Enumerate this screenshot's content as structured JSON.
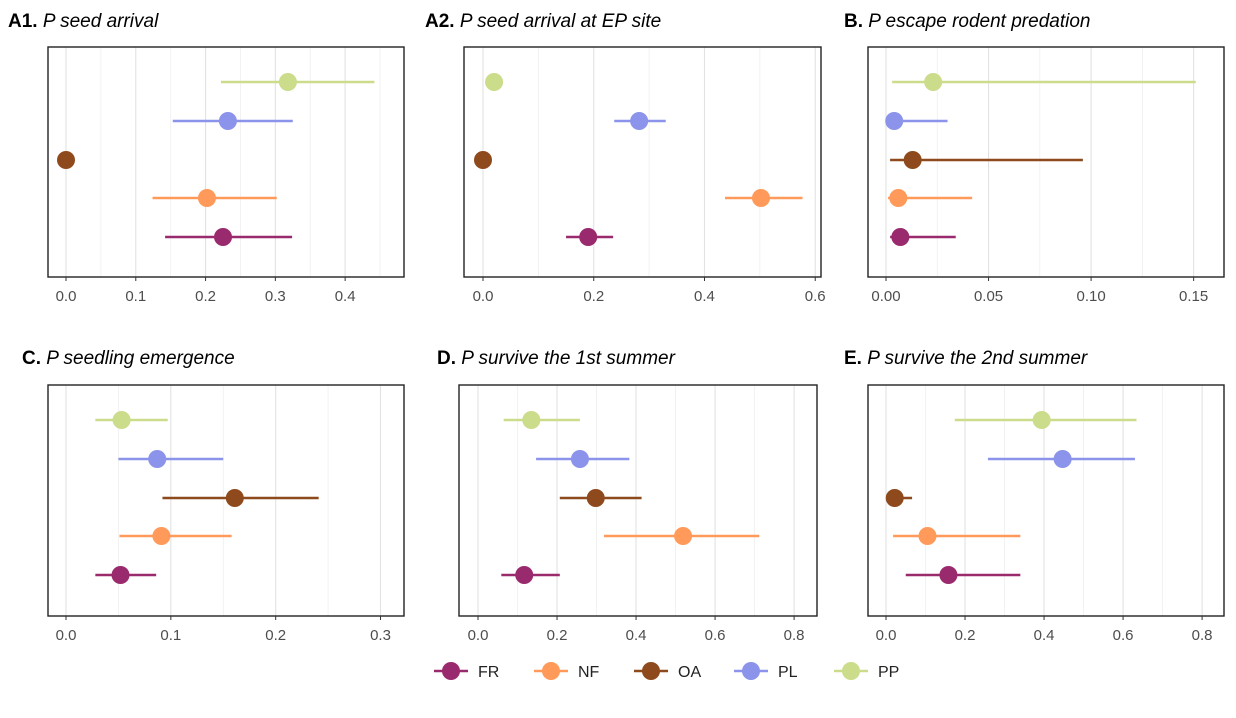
{
  "legend": {
    "items": [
      {
        "name": "FR",
        "color": "#9a2a6e"
      },
      {
        "name": "NF",
        "color": "#ff9a5a"
      },
      {
        "name": "OA",
        "color": "#8e4a1c"
      },
      {
        "name": "PL",
        "color": "#8b93ea"
      },
      {
        "name": "PP",
        "color": "#cbdc8b"
      }
    ],
    "placement": "bottom"
  },
  "chart_data": [
    {
      "type": "pointrange",
      "label": "A1.",
      "title": "P seed arrival",
      "xlim": [
        0,
        0.46
      ],
      "ticks": [
        0,
        0.1,
        0.2,
        0.3,
        0.4
      ],
      "tick_labels": [
        "0.0",
        "0.1",
        "0.2",
        "0.3",
        "0.4"
      ],
      "grid": true,
      "series": [
        {
          "group": "FR",
          "mid": 0.225,
          "lo": 0.142,
          "hi": 0.324
        },
        {
          "group": "NF",
          "mid": 0.202,
          "lo": 0.124,
          "hi": 0.302
        },
        {
          "group": "OA",
          "mid": 0.0,
          "lo": 0.0,
          "hi": 0.0
        },
        {
          "group": "PL",
          "mid": 0.232,
          "lo": 0.153,
          "hi": 0.325
        },
        {
          "group": "PP",
          "mid": 0.318,
          "lo": 0.222,
          "hi": 0.442
        }
      ]
    },
    {
      "type": "pointrange",
      "label": "A2.",
      "title": "P seed arrival at EP site",
      "xlim": [
        0,
        0.605
      ],
      "ticks": [
        0,
        0.2,
        0.4,
        0.6
      ],
      "tick_labels": [
        "0.0",
        "0.2",
        "0.4",
        "0.6"
      ],
      "grid": true,
      "series": [
        {
          "group": "FR",
          "mid": 0.19,
          "lo": 0.15,
          "hi": 0.235
        },
        {
          "group": "NF",
          "mid": 0.502,
          "lo": 0.437,
          "hi": 0.577
        },
        {
          "group": "OA",
          "mid": 0.0,
          "lo": 0.0,
          "hi": 0.0
        },
        {
          "group": "PL",
          "mid": 0.282,
          "lo": 0.237,
          "hi": 0.33
        },
        {
          "group": "PP",
          "mid": 0.02,
          "lo": 0.02,
          "hi": 0.02
        }
      ]
    },
    {
      "type": "pointrange",
      "label": "B.",
      "title": "P escape rodent predation",
      "xlim": [
        0,
        0.157
      ],
      "ticks": [
        0,
        0.05,
        0.1,
        0.15
      ],
      "tick_labels": [
        "0.00",
        "0.05",
        "0.10",
        "0.15"
      ],
      "grid": true,
      "series": [
        {
          "group": "FR",
          "mid": 0.007,
          "lo": 0.002,
          "hi": 0.034
        },
        {
          "group": "NF",
          "mid": 0.006,
          "lo": 0.001,
          "hi": 0.042
        },
        {
          "group": "OA",
          "mid": 0.013,
          "lo": 0.002,
          "hi": 0.096
        },
        {
          "group": "PL",
          "mid": 0.004,
          "lo": 0.0,
          "hi": 0.03
        },
        {
          "group": "PP",
          "mid": 0.023,
          "lo": 0.003,
          "hi": 0.151
        }
      ]
    },
    {
      "type": "pointrange",
      "label": "C.",
      "title": "P seedling emergence",
      "xlim": [
        0,
        0.31
      ],
      "ticks": [
        0,
        0.1,
        0.2,
        0.3
      ],
      "tick_labels": [
        "0.0",
        "0.1",
        "0.2",
        "0.3"
      ],
      "grid": true,
      "series": [
        {
          "group": "FR",
          "mid": 0.052,
          "lo": 0.028,
          "hi": 0.086
        },
        {
          "group": "NF",
          "mid": 0.091,
          "lo": 0.051,
          "hi": 0.158
        },
        {
          "group": "OA",
          "mid": 0.161,
          "lo": 0.092,
          "hi": 0.241
        },
        {
          "group": "PL",
          "mid": 0.087,
          "lo": 0.05,
          "hi": 0.15
        },
        {
          "group": "PP",
          "mid": 0.053,
          "lo": 0.028,
          "hi": 0.097
        }
      ]
    },
    {
      "type": "pointrange",
      "label": "D.",
      "title": "P survive the 1st summer",
      "xlim": [
        0,
        0.82
      ],
      "ticks": [
        0,
        0.2,
        0.4,
        0.6,
        0.8
      ],
      "tick_labels": [
        "0.0",
        "0.2",
        "0.4",
        "0.6",
        "0.8"
      ],
      "grid": true,
      "series": [
        {
          "group": "FR",
          "mid": 0.117,
          "lo": 0.059,
          "hi": 0.207
        },
        {
          "group": "NF",
          "mid": 0.519,
          "lo": 0.319,
          "hi": 0.712
        },
        {
          "group": "OA",
          "mid": 0.298,
          "lo": 0.207,
          "hi": 0.414
        },
        {
          "group": "PL",
          "mid": 0.258,
          "lo": 0.147,
          "hi": 0.383
        },
        {
          "group": "PP",
          "mid": 0.135,
          "lo": 0.065,
          "hi": 0.258
        }
      ]
    },
    {
      "type": "pointrange",
      "label": "E.",
      "title": "P survive the 2nd summer",
      "xlim": [
        0,
        0.82
      ],
      "ticks": [
        0,
        0.2,
        0.4,
        0.6,
        0.8
      ],
      "tick_labels": [
        "0.0",
        "0.2",
        "0.4",
        "0.6",
        "0.8"
      ],
      "grid": true,
      "series": [
        {
          "group": "FR",
          "mid": 0.158,
          "lo": 0.05,
          "hi": 0.34
        },
        {
          "group": "NF",
          "mid": 0.105,
          "lo": 0.018,
          "hi": 0.34
        },
        {
          "group": "OA",
          "mid": 0.022,
          "lo": 0.0,
          "hi": 0.066
        },
        {
          "group": "PL",
          "mid": 0.447,
          "lo": 0.258,
          "hi": 0.63
        },
        {
          "group": "PP",
          "mid": 0.394,
          "lo": 0.174,
          "hi": 0.634
        }
      ]
    }
  ]
}
